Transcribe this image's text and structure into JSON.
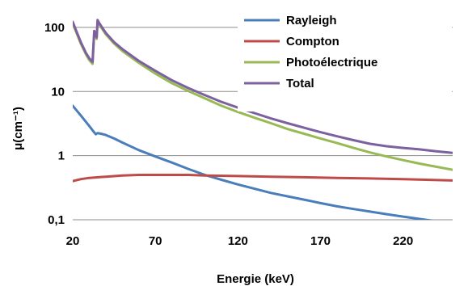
{
  "chart_data": {
    "type": "line",
    "title": "",
    "xlabel": "Energie (keV)",
    "ylabel": "μ(cm⁻¹)",
    "y_scale": "log",
    "xlim": [
      20,
      250
    ],
    "ylim": [
      0.1,
      200
    ],
    "x_ticks": [
      20,
      70,
      120,
      170,
      220
    ],
    "x_tick_labels": [
      "20",
      "70",
      "120",
      "170",
      "220"
    ],
    "y_ticks": [
      0.1,
      1,
      10,
      100
    ],
    "y_tick_labels": [
      "0,1",
      "1",
      "10",
      "100"
    ],
    "grid": "horizontal",
    "legend_position": "top-right",
    "series": [
      {
        "name": "Rayleigh",
        "color": "#4a7ebb",
        "points": [
          [
            20,
            6
          ],
          [
            25,
            4.2
          ],
          [
            30,
            2.9
          ],
          [
            33,
            2.3
          ],
          [
            34,
            2.15
          ],
          [
            35,
            2.25
          ],
          [
            37,
            2.2
          ],
          [
            40,
            2.1
          ],
          [
            45,
            1.85
          ],
          [
            50,
            1.6
          ],
          [
            60,
            1.22
          ],
          [
            70,
            0.97
          ],
          [
            80,
            0.78
          ],
          [
            90,
            0.62
          ],
          [
            100,
            0.5
          ],
          [
            110,
            0.42
          ],
          [
            120,
            0.355
          ],
          [
            130,
            0.305
          ],
          [
            140,
            0.262
          ],
          [
            150,
            0.232
          ],
          [
            160,
            0.206
          ],
          [
            170,
            0.182
          ],
          [
            180,
            0.162
          ],
          [
            190,
            0.147
          ],
          [
            200,
            0.134
          ],
          [
            210,
            0.122
          ],
          [
            220,
            0.112
          ],
          [
            230,
            0.103
          ],
          [
            240,
            0.095
          ],
          [
            250,
            0.088
          ]
        ]
      },
      {
        "name": "Compton",
        "color": "#be4b48",
        "points": [
          [
            20,
            0.4
          ],
          [
            25,
            0.43
          ],
          [
            30,
            0.45
          ],
          [
            40,
            0.47
          ],
          [
            50,
            0.49
          ],
          [
            60,
            0.5
          ],
          [
            70,
            0.5
          ],
          [
            80,
            0.5
          ],
          [
            90,
            0.5
          ],
          [
            100,
            0.49
          ],
          [
            120,
            0.48
          ],
          [
            140,
            0.47
          ],
          [
            160,
            0.46
          ],
          [
            180,
            0.45
          ],
          [
            200,
            0.44
          ],
          [
            220,
            0.43
          ],
          [
            250,
            0.41
          ]
        ]
      },
      {
        "name": "Photoélectrique",
        "color": "#98b954",
        "points": [
          [
            20,
            115
          ],
          [
            22,
            85
          ],
          [
            25,
            55
          ],
          [
            28,
            38
          ],
          [
            30,
            31
          ],
          [
            32,
            27
          ],
          [
            33,
            85
          ],
          [
            34,
            75
          ],
          [
            34.5,
            66
          ],
          [
            35,
            120
          ],
          [
            36,
            112
          ],
          [
            40,
            78
          ],
          [
            45,
            56
          ],
          [
            50,
            43
          ],
          [
            60,
            28
          ],
          [
            70,
            19
          ],
          [
            80,
            13.5
          ],
          [
            90,
            10.2
          ],
          [
            100,
            7.8
          ],
          [
            110,
            6
          ],
          [
            120,
            4.8
          ],
          [
            130,
            3.9
          ],
          [
            140,
            3.2
          ],
          [
            150,
            2.6
          ],
          [
            160,
            2.2
          ],
          [
            170,
            1.85
          ],
          [
            180,
            1.57
          ],
          [
            190,
            1.32
          ],
          [
            200,
            1.12
          ],
          [
            210,
            0.97
          ],
          [
            220,
            0.85
          ],
          [
            230,
            0.75
          ],
          [
            240,
            0.67
          ],
          [
            250,
            0.6
          ]
        ]
      },
      {
        "name": "Total",
        "color": "#7d60a0",
        "points": [
          [
            20,
            122
          ],
          [
            22,
            90
          ],
          [
            25,
            58
          ],
          [
            28,
            40
          ],
          [
            30,
            33
          ],
          [
            32,
            29
          ],
          [
            33,
            88
          ],
          [
            34,
            78
          ],
          [
            34.5,
            70
          ],
          [
            35,
            130
          ],
          [
            36,
            117
          ],
          [
            40,
            82
          ],
          [
            45,
            59
          ],
          [
            50,
            46
          ],
          [
            60,
            30
          ],
          [
            70,
            21
          ],
          [
            80,
            15
          ],
          [
            90,
            11.3
          ],
          [
            100,
            8.8
          ],
          [
            110,
            6.9
          ],
          [
            120,
            5.6
          ],
          [
            130,
            4.6
          ],
          [
            140,
            3.8
          ],
          [
            150,
            3.2
          ],
          [
            160,
            2.72
          ],
          [
            170,
            2.32
          ],
          [
            180,
            2.0
          ],
          [
            190,
            1.74
          ],
          [
            200,
            1.53
          ],
          [
            210,
            1.4
          ],
          [
            220,
            1.32
          ],
          [
            230,
            1.25
          ],
          [
            240,
            1.17
          ],
          [
            250,
            1.1
          ]
        ]
      }
    ]
  }
}
